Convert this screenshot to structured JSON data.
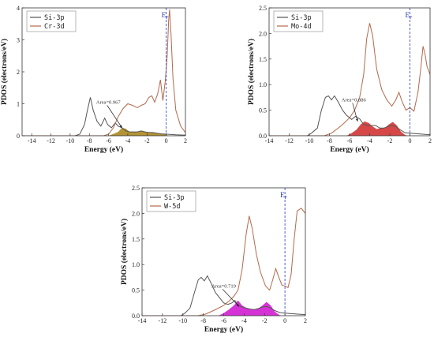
{
  "chart_data": [
    {
      "type": "line",
      "xlabel": "Energy (eV)",
      "ylabel": "PDOS (electrons/eV)",
      "xlim": [
        -15,
        2
      ],
      "ylim": [
        0,
        4
      ],
      "x_ticks": [
        "-14",
        "-12",
        "-10",
        "-8",
        "-6",
        "-4",
        "-2",
        "0",
        "2"
      ],
      "y_ticks": [
        "0",
        "1",
        "2",
        "3",
        "4"
      ],
      "fermi_label": "E",
      "fermi_sub": "F",
      "fermi_level": 0,
      "annotation": "Area=0.967",
      "annotation_xy": [
        -7.3,
        1.0
      ],
      "annotation_arrow_to": [
        -4.6,
        0.25
      ],
      "legend_position": "top-left",
      "series": [
        {
          "name": "Si-3p",
          "color": "#555555",
          "points": [
            [
              -15,
              0
            ],
            [
              -9.5,
              0
            ],
            [
              -9,
              0.05
            ],
            [
              -8.5,
              0.35
            ],
            [
              -8.2,
              0.8
            ],
            [
              -7.9,
              1.2
            ],
            [
              -7.6,
              0.8
            ],
            [
              -7.2,
              0.45
            ],
            [
              -6.8,
              0.3
            ],
            [
              -6.4,
              0.55
            ],
            [
              -6.1,
              0.35
            ],
            [
              -5.7,
              0.25
            ],
            [
              -5.3,
              0.4
            ],
            [
              -5.0,
              0.3
            ],
            [
              -4.6,
              0.25
            ],
            [
              -4.2,
              0.15
            ],
            [
              -3.8,
              0.12
            ],
            [
              -3.4,
              0.12
            ],
            [
              -3.0,
              0.12
            ],
            [
              -2.6,
              0.15
            ],
            [
              -2.2,
              0.12
            ],
            [
              -1.8,
              0.1
            ],
            [
              -1.4,
              0.1
            ],
            [
              -1.0,
              0.08
            ],
            [
              -0.5,
              0.06
            ],
            [
              0,
              0.05
            ],
            [
              0.5,
              0.04
            ],
            [
              1.0,
              0.03
            ],
            [
              2,
              0.02
            ]
          ]
        },
        {
          "name": "Cr-3d",
          "color": "#b4694a",
          "points": [
            [
              -15,
              0
            ],
            [
              -6.5,
              0
            ],
            [
              -6.0,
              0.05
            ],
            [
              -5.5,
              0.25
            ],
            [
              -5.0,
              0.6
            ],
            [
              -4.5,
              0.85
            ],
            [
              -4.0,
              1.0
            ],
            [
              -3.5,
              0.95
            ],
            [
              -3.0,
              0.88
            ],
            [
              -2.6,
              0.95
            ],
            [
              -2.2,
              1.0
            ],
            [
              -1.8,
              1.2
            ],
            [
              -1.5,
              1.25
            ],
            [
              -1.2,
              1.05
            ],
            [
              -0.9,
              1.3
            ],
            [
              -0.6,
              1.75
            ],
            [
              -0.35,
              1.1
            ],
            [
              -0.1,
              1.7
            ],
            [
              0.1,
              2.5
            ],
            [
              0.25,
              3.6
            ],
            [
              0.35,
              3.95
            ],
            [
              0.5,
              3.2
            ],
            [
              0.7,
              1.8
            ],
            [
              1.0,
              0.8
            ],
            [
              1.5,
              0.3
            ],
            [
              2,
              0.1
            ]
          ]
        }
      ],
      "shaded_series": [
        {
          "name": "integrated overlap",
          "color": "#a07800",
          "points": [
            [
              -6.0,
              0
            ],
            [
              -5.5,
              0.06
            ],
            [
              -5.0,
              0.12
            ],
            [
              -4.6,
              0.25
            ],
            [
              -4.2,
              0.22
            ],
            [
              -3.8,
              0.12
            ],
            [
              -3.4,
              0.12
            ],
            [
              -3.0,
              0.12
            ],
            [
              -2.6,
              0.14
            ],
            [
              -2.2,
              0.12
            ],
            [
              -1.8,
              0.1
            ],
            [
              -1.4,
              0.1
            ],
            [
              -1.0,
              0.08
            ],
            [
              -0.5,
              0.06
            ],
            [
              0,
              0.05
            ],
            [
              0.1,
              0
            ]
          ]
        }
      ]
    },
    {
      "type": "line",
      "xlabel": "Energy (eV)",
      "ylabel": "PDOS (electrons/eV)",
      "xlim": [
        -14,
        2
      ],
      "ylim": [
        0,
        2.5
      ],
      "x_ticks": [
        "-14",
        "-12",
        "-10",
        "-8",
        "-6",
        "-4",
        "-2",
        "0",
        "2"
      ],
      "y_ticks": [
        "0.0",
        "0.5",
        "1.0",
        "1.5",
        "2.0",
        "2.5"
      ],
      "fermi_label": "E",
      "fermi_sub": "F",
      "fermi_level": 0,
      "annotation": "Area=0.886",
      "annotation_xy": [
        -6.8,
        0.67
      ],
      "annotation_arrow_to": [
        -5.2,
        0.28
      ],
      "legend_position": "top-left",
      "series": [
        {
          "name": "Si-3p",
          "color": "#555555",
          "points": [
            [
              -14,
              0
            ],
            [
              -10.2,
              0
            ],
            [
              -9.8,
              0.05
            ],
            [
              -9.2,
              0.15
            ],
            [
              -8.8,
              0.5
            ],
            [
              -8.4,
              0.75
            ],
            [
              -8.1,
              0.78
            ],
            [
              -7.8,
              0.7
            ],
            [
              -7.5,
              0.78
            ],
            [
              -7.1,
              0.65
            ],
            [
              -6.7,
              0.5
            ],
            [
              -6.3,
              0.4
            ],
            [
              -5.8,
              0.32
            ],
            [
              -5.4,
              0.38
            ],
            [
              -5.0,
              0.33
            ],
            [
              -4.6,
              0.22
            ],
            [
              -4.2,
              0.2
            ],
            [
              -3.8,
              0.2
            ],
            [
              -3.4,
              0.2
            ],
            [
              -3.0,
              0.15
            ],
            [
              -2.6,
              0.15
            ],
            [
              -2.2,
              0.18
            ],
            [
              -1.8,
              0.2
            ],
            [
              -1.4,
              0.18
            ],
            [
              -1.0,
              0.12
            ],
            [
              -0.5,
              0.06
            ],
            [
              0,
              0.05
            ],
            [
              2,
              0.02
            ]
          ]
        },
        {
          "name": "Mo-4d",
          "color": "#b4694a",
          "points": [
            [
              -14,
              0
            ],
            [
              -8.5,
              0
            ],
            [
              -7.8,
              0.05
            ],
            [
              -6.8,
              0.2
            ],
            [
              -6.0,
              0.35
            ],
            [
              -5.5,
              0.5
            ],
            [
              -5.0,
              0.75
            ],
            [
              -4.6,
              1.2
            ],
            [
              -4.3,
              1.9
            ],
            [
              -4.0,
              2.2
            ],
            [
              -3.7,
              1.95
            ],
            [
              -3.3,
              1.3
            ],
            [
              -2.8,
              0.9
            ],
            [
              -2.3,
              0.7
            ],
            [
              -1.8,
              0.58
            ],
            [
              -1.4,
              0.7
            ],
            [
              -1.1,
              0.85
            ],
            [
              -0.8,
              0.68
            ],
            [
              -0.4,
              0.5
            ],
            [
              0,
              0.55
            ],
            [
              0.4,
              0.48
            ],
            [
              0.8,
              0.85
            ],
            [
              1.1,
              1.35
            ],
            [
              1.3,
              1.75
            ],
            [
              1.5,
              1.6
            ],
            [
              1.7,
              1.35
            ],
            [
              2,
              1.2
            ]
          ]
        }
      ],
      "shaded_series": [
        {
          "name": "integrated overlap",
          "color": "#cc1a1a",
          "points": [
            [
              -6.3,
              0
            ],
            [
              -5.8,
              0.05
            ],
            [
              -5.3,
              0.12
            ],
            [
              -4.9,
              0.22
            ],
            [
              -4.5,
              0.28
            ],
            [
              -4.1,
              0.25
            ],
            [
              -3.7,
              0.18
            ],
            [
              -3.3,
              0.13
            ],
            [
              -2.9,
              0.15
            ],
            [
              -2.5,
              0.15
            ],
            [
              -2.1,
              0.22
            ],
            [
              -1.7,
              0.27
            ],
            [
              -1.3,
              0.2
            ],
            [
              -0.9,
              0.08
            ],
            [
              -0.5,
              0.02
            ],
            [
              -0.3,
              0
            ]
          ]
        }
      ]
    },
    {
      "type": "line",
      "xlabel": "Energy (eV)",
      "ylabel": "PDOS (electrons/eV)",
      "xlim": [
        -14,
        2
      ],
      "ylim": [
        0,
        2.5
      ],
      "x_ticks": [
        "-14",
        "-12",
        "-10",
        "-8",
        "-6",
        "-4",
        "-2",
        "0",
        "2"
      ],
      "y_ticks": [
        "0.0",
        "0.5",
        "1.0",
        "1.5",
        "2.0",
        "2.5"
      ],
      "fermi_label": "E",
      "fermi_sub": "F",
      "fermi_level": 0,
      "annotation": "Area=0.719",
      "annotation_xy": [
        -7.2,
        0.55
      ],
      "annotation_arrow_to": [
        -4.5,
        0.18
      ],
      "legend_position": "top-left",
      "series": [
        {
          "name": "Si-3p",
          "color": "#555555",
          "points": [
            [
              -14,
              0
            ],
            [
              -10.2,
              0
            ],
            [
              -9.8,
              0.05
            ],
            [
              -9.3,
              0.15
            ],
            [
              -8.8,
              0.5
            ],
            [
              -8.5,
              0.7
            ],
            [
              -8.2,
              0.75
            ],
            [
              -7.9,
              0.68
            ],
            [
              -7.6,
              0.78
            ],
            [
              -7.2,
              0.62
            ],
            [
              -6.8,
              0.45
            ],
            [
              -6.4,
              0.35
            ],
            [
              -6.0,
              0.25
            ],
            [
              -5.6,
              0.22
            ],
            [
              -5.2,
              0.25
            ],
            [
              -4.9,
              0.3
            ],
            [
              -4.6,
              0.2
            ],
            [
              -4.2,
              0.17
            ],
            [
              -3.8,
              0.15
            ],
            [
              -3.4,
              0.13
            ],
            [
              -3.0,
              0.12
            ],
            [
              -2.6,
              0.14
            ],
            [
              -2.2,
              0.17
            ],
            [
              -1.8,
              0.18
            ],
            [
              -1.4,
              0.15
            ],
            [
              -1.0,
              0.1
            ],
            [
              -0.5,
              0.06
            ],
            [
              0,
              0.05
            ],
            [
              2,
              0.02
            ]
          ]
        },
        {
          "name": "W-5d",
          "color": "#b4694a",
          "points": [
            [
              -14,
              0
            ],
            [
              -8.5,
              0
            ],
            [
              -7.8,
              0.03
            ],
            [
              -7.0,
              0.1
            ],
            [
              -6.0,
              0.2
            ],
            [
              -5.4,
              0.3
            ],
            [
              -5.0,
              0.38
            ],
            [
              -4.6,
              0.5
            ],
            [
              -4.2,
              0.9
            ],
            [
              -3.8,
              1.6
            ],
            [
              -3.5,
              1.95
            ],
            [
              -3.2,
              1.7
            ],
            [
              -2.8,
              1.2
            ],
            [
              -2.4,
              0.85
            ],
            [
              -1.9,
              0.58
            ],
            [
              -1.5,
              0.5
            ],
            [
              -1.2,
              0.7
            ],
            [
              -0.9,
              0.92
            ],
            [
              -0.6,
              0.75
            ],
            [
              -0.3,
              0.6
            ],
            [
              0,
              0.58
            ],
            [
              0.3,
              0.55
            ],
            [
              0.6,
              0.8
            ],
            [
              0.9,
              1.5
            ],
            [
              1.2,
              2.05
            ],
            [
              1.6,
              2.1
            ],
            [
              2,
              2.0
            ]
          ]
        }
      ],
      "shaded_series": [
        {
          "name": "integrated overlap",
          "color": "#cc00cc",
          "points": [
            [
              -6.5,
              0
            ],
            [
              -6.0,
              0.05
            ],
            [
              -5.5,
              0.12
            ],
            [
              -5.0,
              0.2
            ],
            [
              -4.6,
              0.3
            ],
            [
              -4.2,
              0.2
            ],
            [
              -3.8,
              0.15
            ],
            [
              -3.4,
              0.13
            ],
            [
              -3.0,
              0.12
            ],
            [
              -2.6,
              0.14
            ],
            [
              -2.2,
              0.2
            ],
            [
              -1.8,
              0.27
            ],
            [
              -1.4,
              0.2
            ],
            [
              -1.0,
              0.08
            ],
            [
              -0.6,
              0.02
            ],
            [
              -0.4,
              0
            ]
          ]
        }
      ]
    }
  ]
}
